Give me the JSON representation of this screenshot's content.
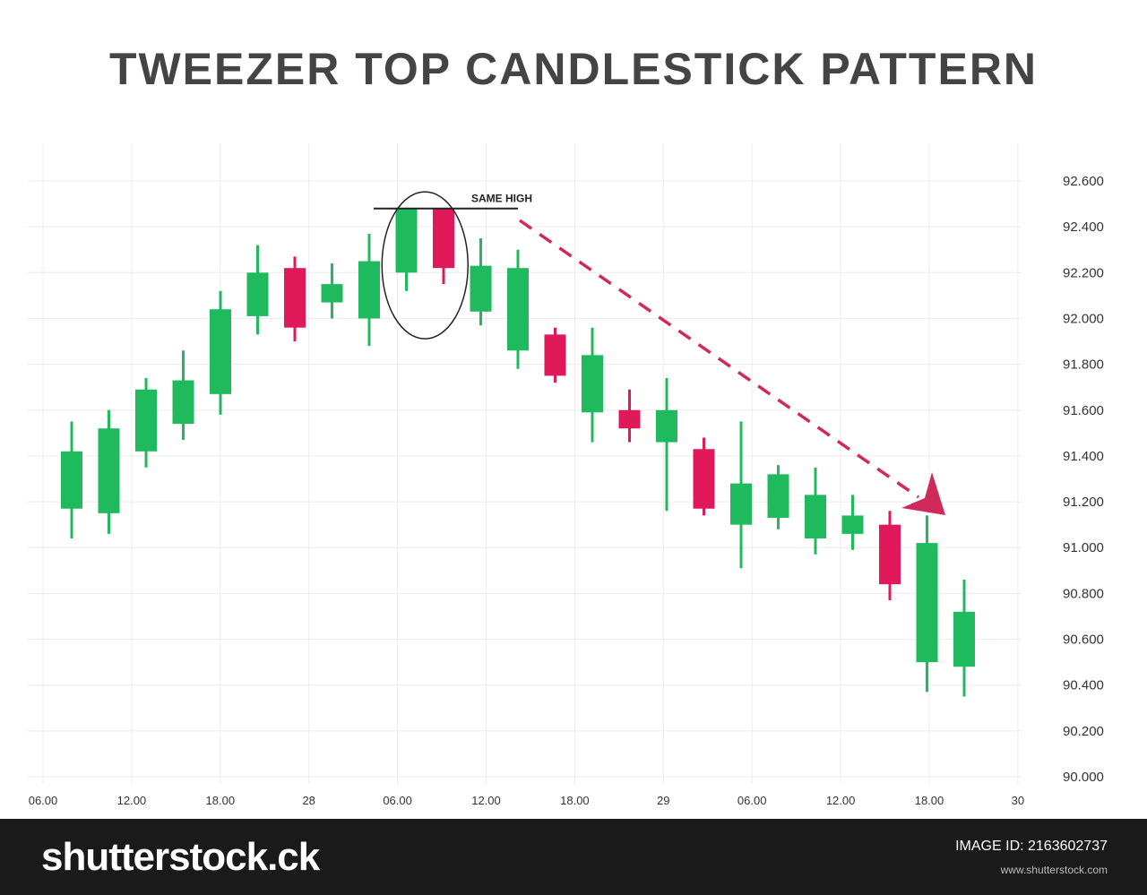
{
  "title": "TWEEZER TOP CANDLESTICK PATTERN",
  "annotation": "SAME HIGH",
  "colors": {
    "bullish": "#1fba5e",
    "bearish": "#e0195b",
    "arrow": "#cf2a5a",
    "grid": "#ececec",
    "text": "#333333"
  },
  "chart_data": {
    "type": "candlestick",
    "y_ticks": [
      "92.600",
      "92.400",
      "92.200",
      "92.000",
      "91.800",
      "91.600",
      "91.400",
      "91.200",
      "91.000",
      "90.800",
      "90.600",
      "90.400",
      "90.200",
      "90.000"
    ],
    "x_ticks": [
      "06.00",
      "12.00",
      "18.00",
      "28",
      "06.00",
      "12.00",
      "18.00",
      "29",
      "06.00",
      "12.00",
      "18.00",
      "30"
    ],
    "ylim": [
      90.0,
      92.6
    ],
    "candles": [
      {
        "open": 91.17,
        "close": 91.42,
        "high": 91.55,
        "low": 91.04
      },
      {
        "open": 91.15,
        "close": 91.52,
        "high": 91.6,
        "low": 91.06
      },
      {
        "open": 91.42,
        "close": 91.69,
        "high": 91.74,
        "low": 91.35
      },
      {
        "open": 91.54,
        "close": 91.73,
        "high": 91.86,
        "low": 91.47
      },
      {
        "open": 91.67,
        "close": 92.04,
        "high": 92.12,
        "low": 91.58
      },
      {
        "open": 92.01,
        "close": 92.2,
        "high": 92.32,
        "low": 91.93
      },
      {
        "open": 92.22,
        "close": 91.96,
        "high": 92.27,
        "low": 91.9
      },
      {
        "open": 92.07,
        "close": 92.15,
        "high": 92.24,
        "low": 92.0
      },
      {
        "open": 92.0,
        "close": 92.25,
        "high": 92.37,
        "low": 91.88
      },
      {
        "open": 92.2,
        "close": 92.48,
        "high": 92.48,
        "low": 92.12
      },
      {
        "open": 92.48,
        "close": 92.22,
        "high": 92.48,
        "low": 92.15
      },
      {
        "open": 92.03,
        "close": 92.23,
        "high": 92.35,
        "low": 91.97
      },
      {
        "open": 91.86,
        "close": 92.22,
        "high": 92.3,
        "low": 91.78
      },
      {
        "open": 91.93,
        "close": 91.75,
        "high": 91.96,
        "low": 91.72
      },
      {
        "open": 91.59,
        "close": 91.84,
        "high": 91.96,
        "low": 91.46
      },
      {
        "open": 91.6,
        "close": 91.52,
        "high": 91.69,
        "low": 91.46
      },
      {
        "open": 91.46,
        "close": 91.6,
        "high": 91.74,
        "low": 91.16
      },
      {
        "open": 91.43,
        "close": 91.17,
        "high": 91.48,
        "low": 91.14
      },
      {
        "open": 91.1,
        "close": 91.28,
        "high": 91.55,
        "low": 90.91
      },
      {
        "open": 91.13,
        "close": 91.32,
        "high": 91.36,
        "low": 91.08
      },
      {
        "open": 91.04,
        "close": 91.23,
        "high": 91.35,
        "low": 90.97
      },
      {
        "open": 91.06,
        "close": 91.14,
        "high": 91.23,
        "low": 90.99
      },
      {
        "open": 91.1,
        "close": 90.84,
        "high": 91.16,
        "low": 90.77
      },
      {
        "open": 90.5,
        "close": 91.02,
        "high": 91.14,
        "low": 90.37
      },
      {
        "open": 90.48,
        "close": 90.72,
        "high": 90.86,
        "low": 90.35
      }
    ]
  },
  "footer": {
    "brand": "shutterstock",
    "brand_suffix": ".ck",
    "image_id": "IMAGE ID: 2163602737",
    "site": "www.shutterstock.com"
  }
}
